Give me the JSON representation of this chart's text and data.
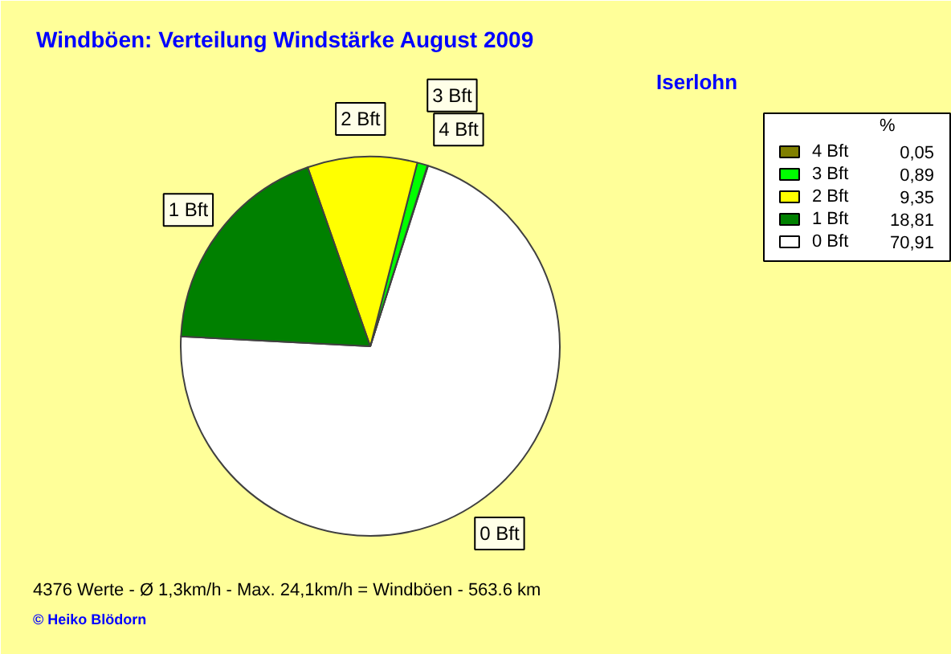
{
  "chart_data": {
    "type": "pie",
    "title": "Windböen: Verteilung Windstärke  August 2009",
    "subtitle": "Iserlohn",
    "legend_title": "%",
    "categories": [
      "4 Bft",
      "3 Bft",
      "2 Bft",
      "1 Bft",
      "0 Bft"
    ],
    "values": [
      0.05,
      0.89,
      9.35,
      18.81,
      70.91
    ],
    "colors": [
      "#808000",
      "#00ff00",
      "#ffff00",
      "#008000",
      "#ffffff"
    ],
    "value_labels": [
      "0,05",
      "0,89",
      "9,35",
      "18,81",
      "70,91"
    ],
    "legend": "top right",
    "annotations": [
      "4376 Werte   -   Ø 1,3km/h  -  Max. 24,1km/h = Windböen   -   563.6 km",
      "© Heiko Blödorn"
    ]
  }
}
